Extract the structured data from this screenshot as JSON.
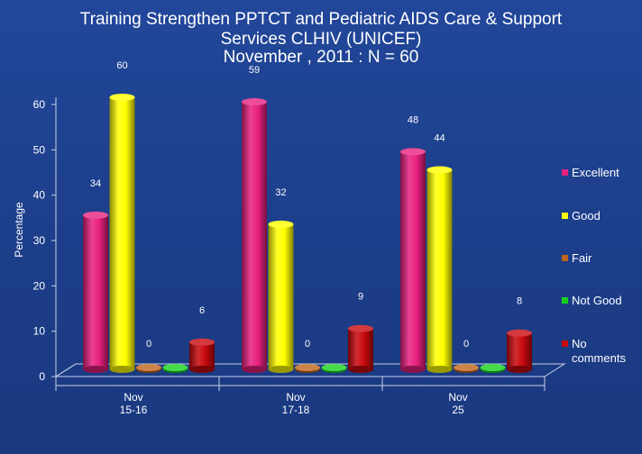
{
  "chart_data": {
    "type": "bar",
    "title_lines": [
      "Training  Strengthen PPTCT and Pediatric AIDS Care  & Support",
      "Services CLHIV (UNICEF)",
      "November , 2011 : N = 60"
    ],
    "ylabel": "Percentage",
    "xlabel": "",
    "ylim": [
      0,
      60
    ],
    "yticks": [
      0,
      10,
      20,
      30,
      40,
      50,
      60
    ],
    "categories": [
      [
        "Nov",
        "15-16"
      ],
      [
        "Nov",
        "17-18"
      ],
      [
        "Nov",
        "25"
      ]
    ],
    "series": [
      {
        "name": "Excellent",
        "values": [
          34,
          59,
          48
        ],
        "color": "#e8207f",
        "labels": true
      },
      {
        "name": "Good",
        "values": [
          60,
          32,
          44
        ],
        "color": "#ffff00",
        "labels": true
      },
      {
        "name": "Fair",
        "values": [
          0,
          0,
          0
        ],
        "color": "#c0651a",
        "labels": true
      },
      {
        "name": "Not Good",
        "values": [
          0,
          0,
          0
        ],
        "color": "#16d21c",
        "labels": false
      },
      {
        "name": "No comments",
        "legend_lines": [
          "No",
          "comments"
        ],
        "values": [
          6,
          9,
          8
        ],
        "color": "#c8080e",
        "labels": true
      }
    ],
    "grid": false,
    "legend": "right"
  }
}
